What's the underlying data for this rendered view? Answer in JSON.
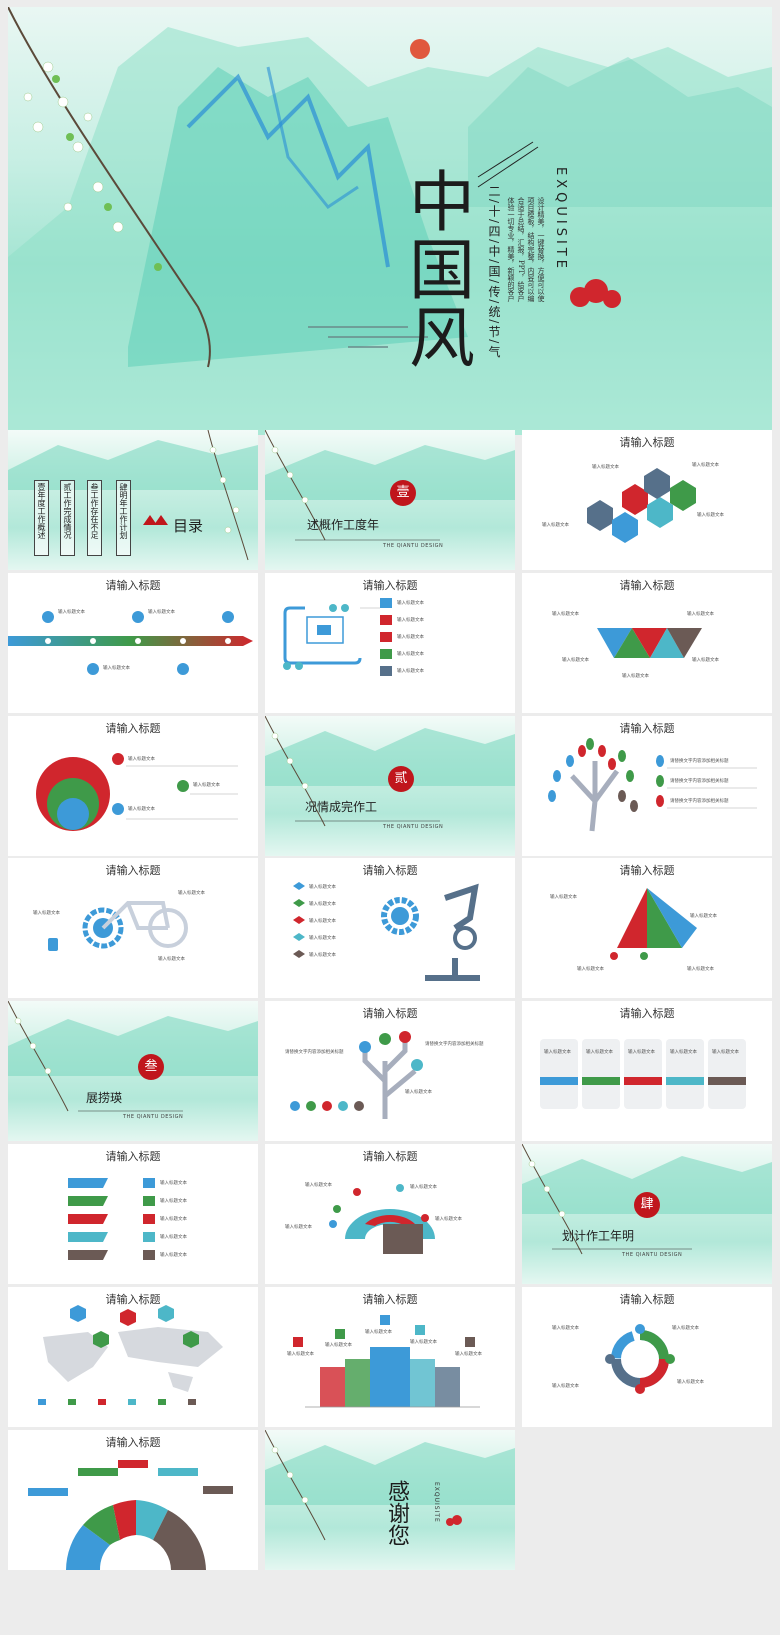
{
  "hero": {
    "title": "中国风",
    "exquisite": "EXQUISITE",
    "subtitle_vertical": "二/十/四/中/国/传/统/节/气",
    "body_col1": "设计精美，一键替换，方便可以使",
    "body_col2": "项目模板，结构完整，内容可以编",
    "body_col3": "合适于总结，汇报，PPT，给客户",
    "body_col4": "体验一切专业，精美，新颖的客户"
  },
  "toc": {
    "title": "目录",
    "items": [
      "壹年度工作概述",
      "贰工作完成情况",
      "叁工作存在不足",
      "肆明年工作计划"
    ]
  },
  "sections": [
    {
      "seal": "壹",
      "label": "述概作工度年",
      "en": "THE QIANTU DESIGN"
    },
    {
      "seal": "贰",
      "label": "况情成完作工",
      "en": "THE QIANTU DESIGN"
    },
    {
      "seal": "叁",
      "label": "展捞瑛",
      "en": "THE QIANTU DESIGN"
    },
    {
      "seal": "肆",
      "label": "划计作工年明",
      "en": "THE QIANTU DESIGN"
    }
  ],
  "slide_title": "请输入标题",
  "placeholder_label": "输入标题文本",
  "placeholder_body": "请替换文字内容添加相关标题",
  "thanks": {
    "title": "感谢您",
    "exquisite": "EXQUISITE"
  },
  "colors": {
    "blue": "#3d9ad8",
    "red": "#d0262d",
    "green": "#3f9a49",
    "teal": "#4db7c8",
    "slate": "#56708a",
    "brown": "#6b5a55",
    "seal": "#c0161c"
  }
}
